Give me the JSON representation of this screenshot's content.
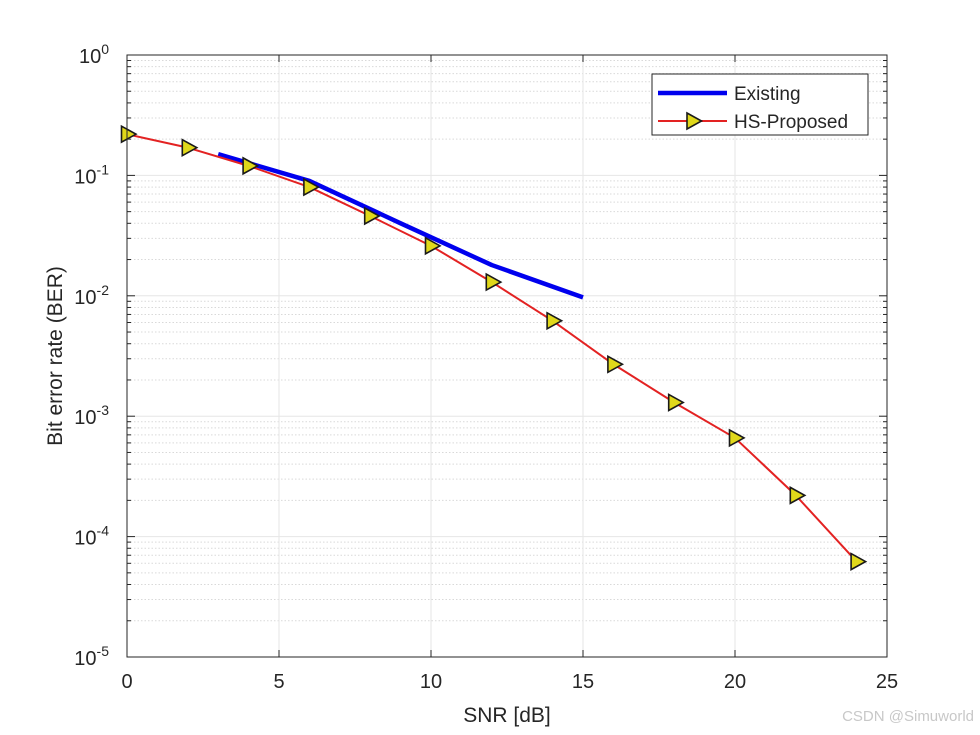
{
  "chart_data": {
    "type": "line",
    "title": "",
    "xlabel": "SNR [dB]",
    "ylabel": "Bit error rate (BER)",
    "xlim": [
      0,
      25
    ],
    "ylim": [
      1e-05,
      1
    ],
    "yscale": "log",
    "grid": true,
    "minor_grid": true,
    "legend_position": "top-right",
    "x_ticks": [
      "0",
      "5",
      "10",
      "15",
      "20",
      "25"
    ],
    "y_ticks": [
      {
        "base": "10",
        "exp": "0"
      },
      {
        "base": "10",
        "exp": "-1"
      },
      {
        "base": "10",
        "exp": "-2"
      },
      {
        "base": "10",
        "exp": "-3"
      },
      {
        "base": "10",
        "exp": "-4"
      },
      {
        "base": "10",
        "exp": "-5"
      }
    ],
    "series": [
      {
        "name": "Existing",
        "color": "#0000ee",
        "marker": "none",
        "x": [
          3,
          6,
          9,
          12,
          15
        ],
        "y": [
          0.15,
          0.09,
          0.04,
          0.018,
          0.0097
        ]
      },
      {
        "name": "HS-Proposed",
        "color": "#e32222",
        "marker": "triangle-right",
        "marker_fill": "#e0d81a",
        "x": [
          0,
          2,
          4,
          6,
          8,
          10,
          12,
          14,
          16,
          18,
          20,
          22,
          24
        ],
        "y": [
          0.22,
          0.17,
          0.12,
          0.08,
          0.046,
          0.026,
          0.013,
          0.0062,
          0.0027,
          0.0013,
          0.00066,
          0.00022,
          6.2e-05
        ]
      }
    ]
  },
  "watermark": "CSDN @Simuworld"
}
